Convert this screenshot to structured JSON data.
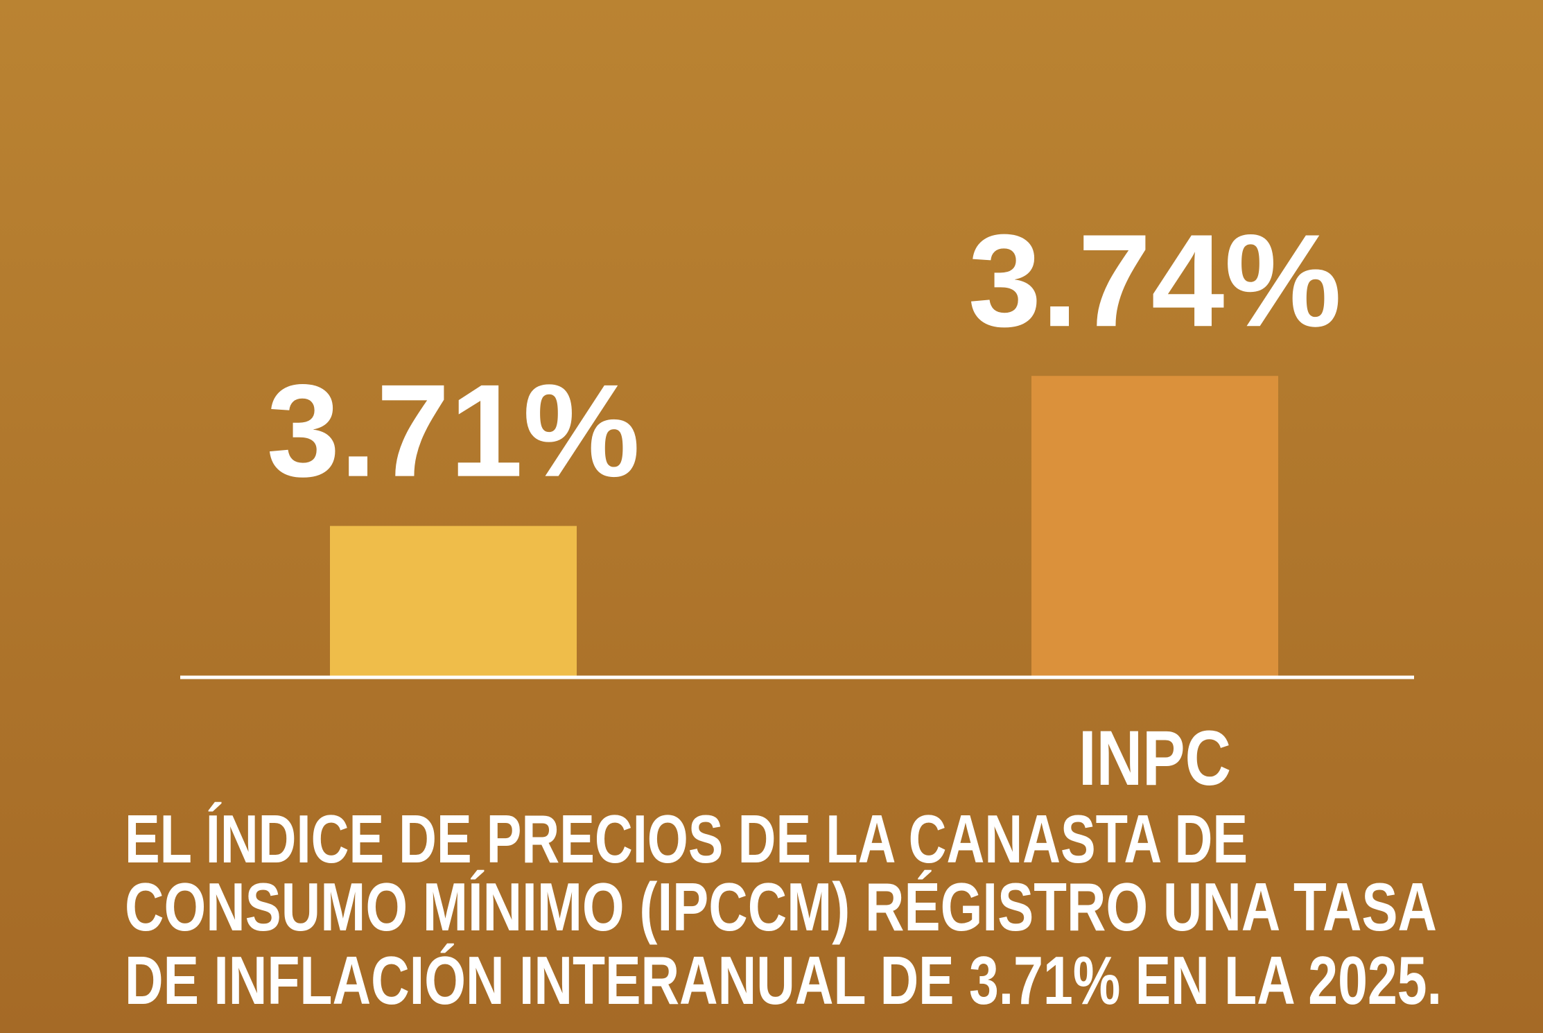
{
  "chart_data": {
    "type": "bar",
    "categories": [
      null,
      "INPC"
    ],
    "values": [
      3.71,
      3.74
    ],
    "value_labels": [
      "3.71%",
      "3.74%"
    ],
    "colors": [
      "#efbd4a",
      "#db913b"
    ],
    "ylim": [
      3.68,
      3.76
    ],
    "note": [
      "EL ÍNDICE DE PRECIOS DE LA CANASTA DE",
      "CONSUMO MÍNIMO (IPCCM) RÉGISTRO UNA TASA",
      "DE INFLACIÓN INTERANUAL DE 3.71% EN LA 2025."
    ]
  }
}
